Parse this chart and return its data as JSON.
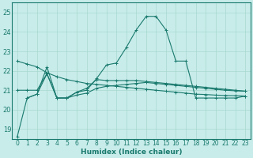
{
  "xlabel": "Humidex (Indice chaleur)",
  "background_color": "#c8ecea",
  "grid_color": "#a8d8d0",
  "line_color": "#1a7a6e",
  "xlim": [
    -0.5,
    23.5
  ],
  "ylim": [
    18.5,
    25.5
  ],
  "yticks": [
    19,
    20,
    21,
    22,
    23,
    24,
    25
  ],
  "xticks": [
    0,
    1,
    2,
    3,
    4,
    5,
    6,
    7,
    8,
    9,
    10,
    11,
    12,
    13,
    14,
    15,
    16,
    17,
    18,
    19,
    20,
    21,
    22,
    23
  ],
  "series": [
    {
      "x": [
        0,
        1,
        2,
        3,
        4,
        5,
        6,
        7,
        8,
        9,
        10,
        11,
        12,
        13,
        14,
        15,
        16,
        17,
        18,
        19,
        20,
        21,
        22,
        23
      ],
      "y": [
        18.6,
        20.6,
        20.8,
        22.2,
        20.6,
        20.6,
        20.9,
        21.0,
        21.6,
        22.3,
        22.4,
        23.2,
        24.1,
        24.8,
        24.8,
        24.1,
        22.5,
        22.5,
        20.6,
        20.6,
        20.6,
        20.6,
        20.6,
        20.7
      ]
    },
    {
      "x": [
        0,
        1,
        2,
        3,
        4,
        5,
        6,
        7,
        8,
        9,
        10,
        11,
        12,
        13,
        14,
        15,
        16,
        17,
        18,
        19,
        20,
        21,
        22,
        23
      ],
      "y": [
        22.5,
        22.35,
        22.2,
        21.9,
        21.7,
        21.55,
        21.45,
        21.35,
        21.3,
        21.25,
        21.2,
        21.15,
        21.1,
        21.05,
        21.0,
        20.95,
        20.9,
        20.85,
        20.8,
        20.78,
        20.75,
        20.73,
        20.72,
        20.7
      ]
    },
    {
      "x": [
        0,
        1,
        2,
        3,
        4,
        5,
        6,
        7,
        8,
        9,
        10,
        11,
        12,
        13,
        14,
        15,
        16,
        17,
        18,
        19,
        20,
        21,
        22,
        23
      ],
      "y": [
        21.0,
        21.0,
        21.0,
        21.85,
        20.6,
        20.6,
        20.9,
        21.1,
        21.55,
        21.5,
        21.5,
        21.5,
        21.5,
        21.45,
        21.4,
        21.35,
        21.3,
        21.25,
        21.2,
        21.15,
        21.1,
        21.05,
        21.0,
        20.95
      ]
    },
    {
      "x": [
        1,
        2,
        3,
        4,
        5,
        6,
        7,
        8,
        9,
        10,
        11,
        12,
        13,
        14,
        15,
        16,
        17,
        18,
        19,
        20,
        21,
        22,
        23
      ],
      "y": [
        20.6,
        20.8,
        21.85,
        20.6,
        20.6,
        20.75,
        20.85,
        21.1,
        21.2,
        21.25,
        21.3,
        21.35,
        21.4,
        21.35,
        21.3,
        21.25,
        21.2,
        21.15,
        21.1,
        21.05,
        21.0,
        20.97,
        20.95
      ]
    }
  ]
}
